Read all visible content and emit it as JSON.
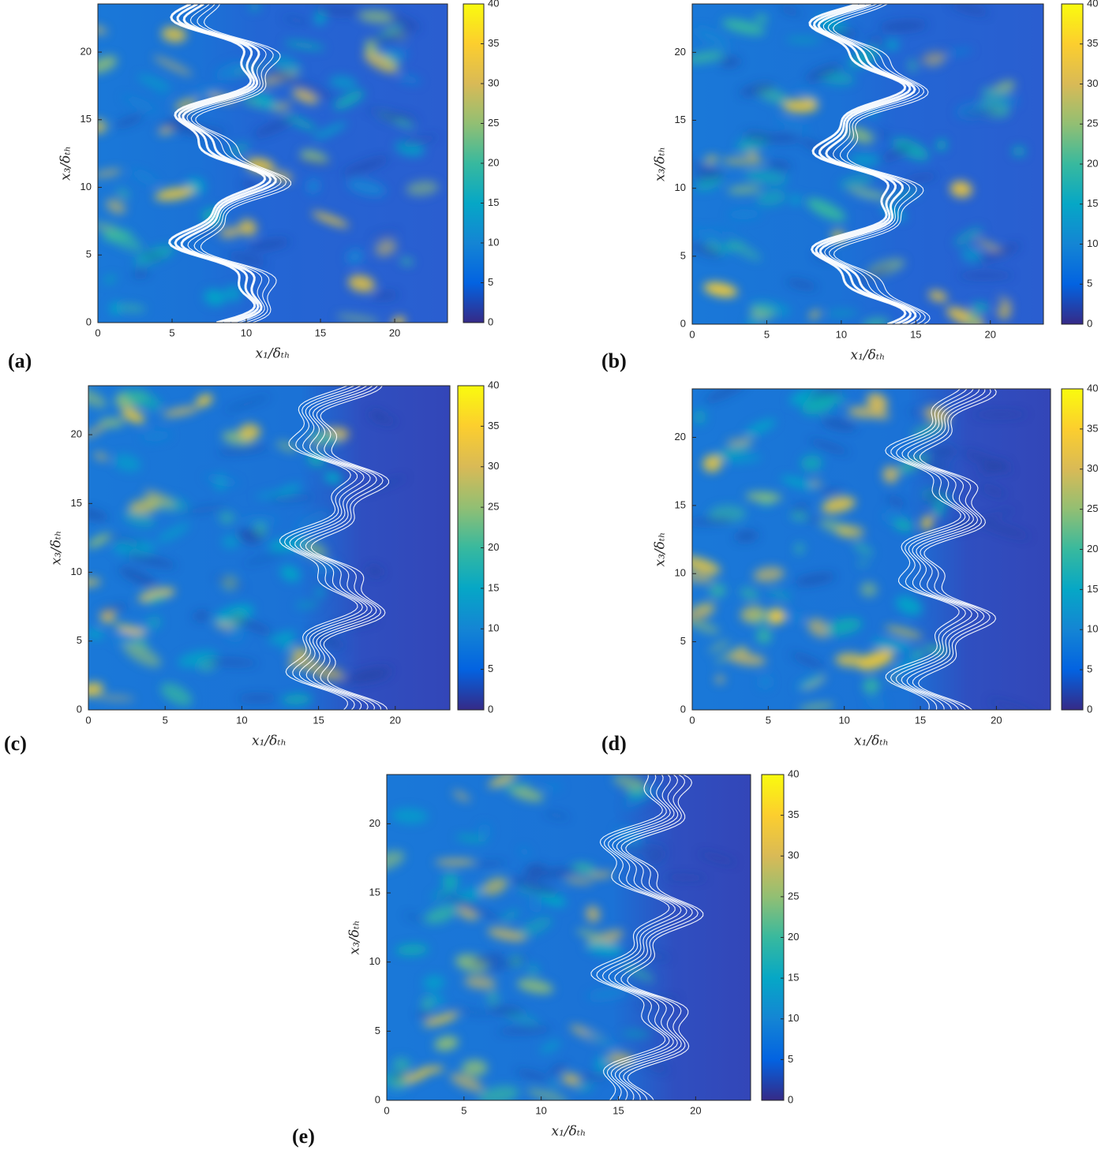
{
  "chart_data": [
    {
      "type": "heatmap",
      "panel_label": "(a)",
      "x_label": "x₁/δₜₕ",
      "y_label": "x₃/δₜₕ",
      "xlim": [
        0,
        23.56
      ],
      "ylim": [
        0,
        23.56
      ],
      "xticks": [
        0,
        5,
        10,
        15,
        20
      ],
      "yticks": [
        0,
        5,
        10,
        15,
        20
      ],
      "clim": [
        0,
        40
      ],
      "cticks": [
        0,
        5,
        10,
        15,
        20,
        25,
        30,
        35,
        40
      ]
    },
    {
      "type": "heatmap",
      "panel_label": "(b)",
      "x_label": "x₁/δₜₕ",
      "y_label": "x₃/δₜₕ",
      "xlim": [
        0,
        23.56
      ],
      "ylim": [
        0,
        23.56
      ],
      "xticks": [
        0,
        5,
        10,
        15,
        20
      ],
      "yticks": [
        0,
        5,
        10,
        15,
        20
      ],
      "clim": [
        0,
        40
      ],
      "cticks": [
        0,
        5,
        10,
        15,
        20,
        25,
        30,
        35,
        40
      ]
    },
    {
      "type": "heatmap",
      "panel_label": "(c)",
      "x_label": "x₁/δₜₕ",
      "y_label": "x₃/δₜₕ",
      "xlim": [
        0,
        23.56
      ],
      "ylim": [
        0,
        23.56
      ],
      "xticks": [
        0,
        5,
        10,
        15,
        20
      ],
      "yticks": [
        0,
        5,
        10,
        15,
        20
      ],
      "clim": [
        0,
        40
      ],
      "cticks": [
        0,
        5,
        10,
        15,
        20,
        25,
        30,
        35,
        40
      ]
    },
    {
      "type": "heatmap",
      "panel_label": "(d)",
      "x_label": "x₁/δₜₕ",
      "y_label": "x₃/δₜₕ",
      "xlim": [
        0,
        23.56
      ],
      "ylim": [
        0,
        23.56
      ],
      "xticks": [
        0,
        5,
        10,
        15,
        20
      ],
      "yticks": [
        0,
        5,
        10,
        15,
        20
      ],
      "clim": [
        0,
        40
      ],
      "cticks": [
        0,
        5,
        10,
        15,
        20,
        25,
        30,
        35,
        40
      ]
    },
    {
      "type": "heatmap",
      "panel_label": "(e)",
      "x_label": "x₁/δₜₕ",
      "y_label": "x₃/δₜₕ",
      "xlim": [
        0,
        23.56
      ],
      "ylim": [
        0,
        23.56
      ],
      "xticks": [
        0,
        5,
        10,
        15,
        20
      ],
      "yticks": [
        0,
        5,
        10,
        15,
        20
      ],
      "clim": [
        0,
        40
      ],
      "cticks": [
        0,
        5,
        10,
        15,
        20,
        25,
        30,
        35,
        40
      ]
    }
  ]
}
